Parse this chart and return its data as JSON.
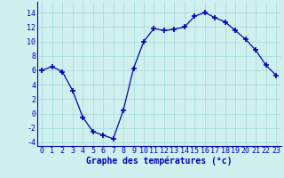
{
  "hours": [
    0,
    1,
    2,
    3,
    4,
    5,
    6,
    7,
    8,
    9,
    10,
    11,
    12,
    13,
    14,
    15,
    16,
    17,
    18,
    19,
    20,
    21,
    22,
    23
  ],
  "temps": [
    6,
    6.5,
    5.8,
    3.2,
    -0.5,
    -2.5,
    -3,
    -3.5,
    0.5,
    6.3,
    10,
    11.8,
    11.5,
    11.7,
    12,
    13.5,
    14,
    13.3,
    12.7,
    11.5,
    10.3,
    8.8,
    6.7,
    5.3
  ],
  "line_color": "#0000bb",
  "marker": "+",
  "marker_size": 4,
  "bg_color": "#d0f0f0",
  "grid_color": "#aadddd",
  "xlabel": "Graphe des températures (°c)",
  "xlabel_color": "#0000bb",
  "xlabel_fontsize": 7,
  "tick_color": "#0000bb",
  "tick_fontsize": 6,
  "xlim": [
    -0.5,
    23.5
  ],
  "ylim": [
    -4.5,
    15.5
  ],
  "yticks": [
    -4,
    -2,
    0,
    2,
    4,
    6,
    8,
    10,
    12,
    14
  ],
  "xticks": [
    0,
    1,
    2,
    3,
    4,
    5,
    6,
    7,
    8,
    9,
    10,
    11,
    12,
    13,
    14,
    15,
    16,
    17,
    18,
    19,
    20,
    21,
    22,
    23
  ]
}
